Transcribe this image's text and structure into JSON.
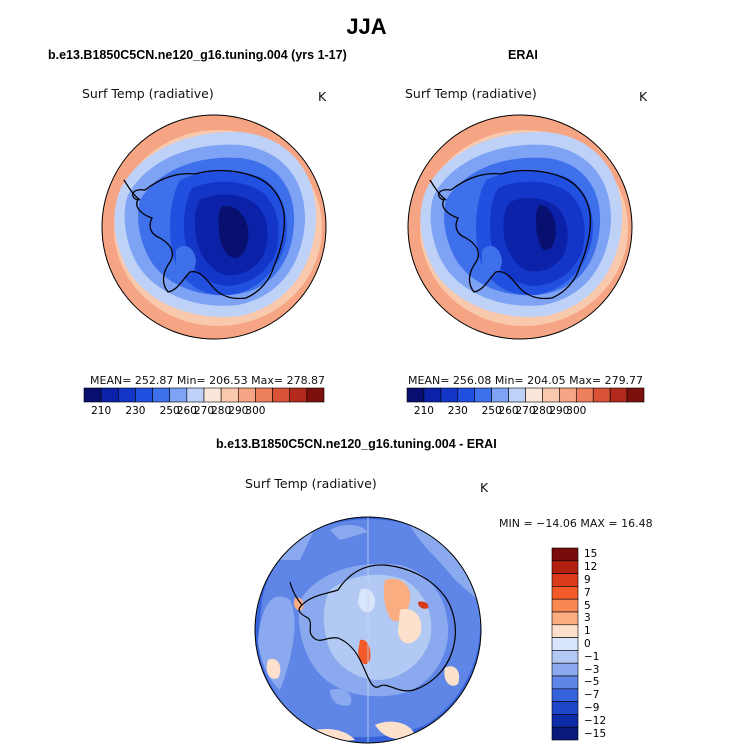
{
  "season_title": "JJA",
  "panel_left": {
    "case_title": "b.e13.B1850C5CN.ne120_g16.tuning.004 (yrs 1-17)",
    "variable": "Surf Temp (radiative)",
    "units": "K",
    "stats": "MEAN= 252.87   Min= 206.53   Max= 278.87"
  },
  "panel_right": {
    "case_title": "ERAI",
    "variable": "Surf Temp (radiative)",
    "units": "K",
    "stats": "MEAN= 256.08   Min= 204.05   Max= 279.77"
  },
  "panel_diff": {
    "case_title": "b.e13.B1850C5CN.ne120_g16.tuning.004 - ERAI",
    "variable": "Surf Temp (radiative)",
    "units": "K",
    "stats": "MIN = −14.06  MAX =  16.48"
  },
  "abs_colorbar": {
    "colors": [
      "#08106f",
      "#0b22a8",
      "#1336c8",
      "#2150e0",
      "#3f70ec",
      "#7ea2f4",
      "#bed2f8",
      "#fbe7d9",
      "#f9c9ad",
      "#f6a584",
      "#ec7f5e",
      "#d75237",
      "#b32a1d",
      "#7d0f0c"
    ],
    "ticks": [
      "210",
      "230",
      "250",
      "260",
      "270",
      "280",
      "290",
      "300"
    ]
  },
  "diff_colorbar": {
    "colors": [
      "#7a0b0b",
      "#b3200f",
      "#d83a1a",
      "#f25a2a",
      "#f88752",
      "#fbad82",
      "#fde1cc",
      "#d8e5fa",
      "#b2c9f4",
      "#8aa9ee",
      "#5f86e6",
      "#3663dc",
      "#1e46c9",
      "#0f2ca8",
      "#091a7a"
    ],
    "ticks": [
      "15",
      "12",
      "9",
      "7",
      "5",
      "3",
      "1",
      "0",
      "−1",
      "−3",
      "−5",
      "−7",
      "−9",
      "−12",
      "−15"
    ]
  }
}
